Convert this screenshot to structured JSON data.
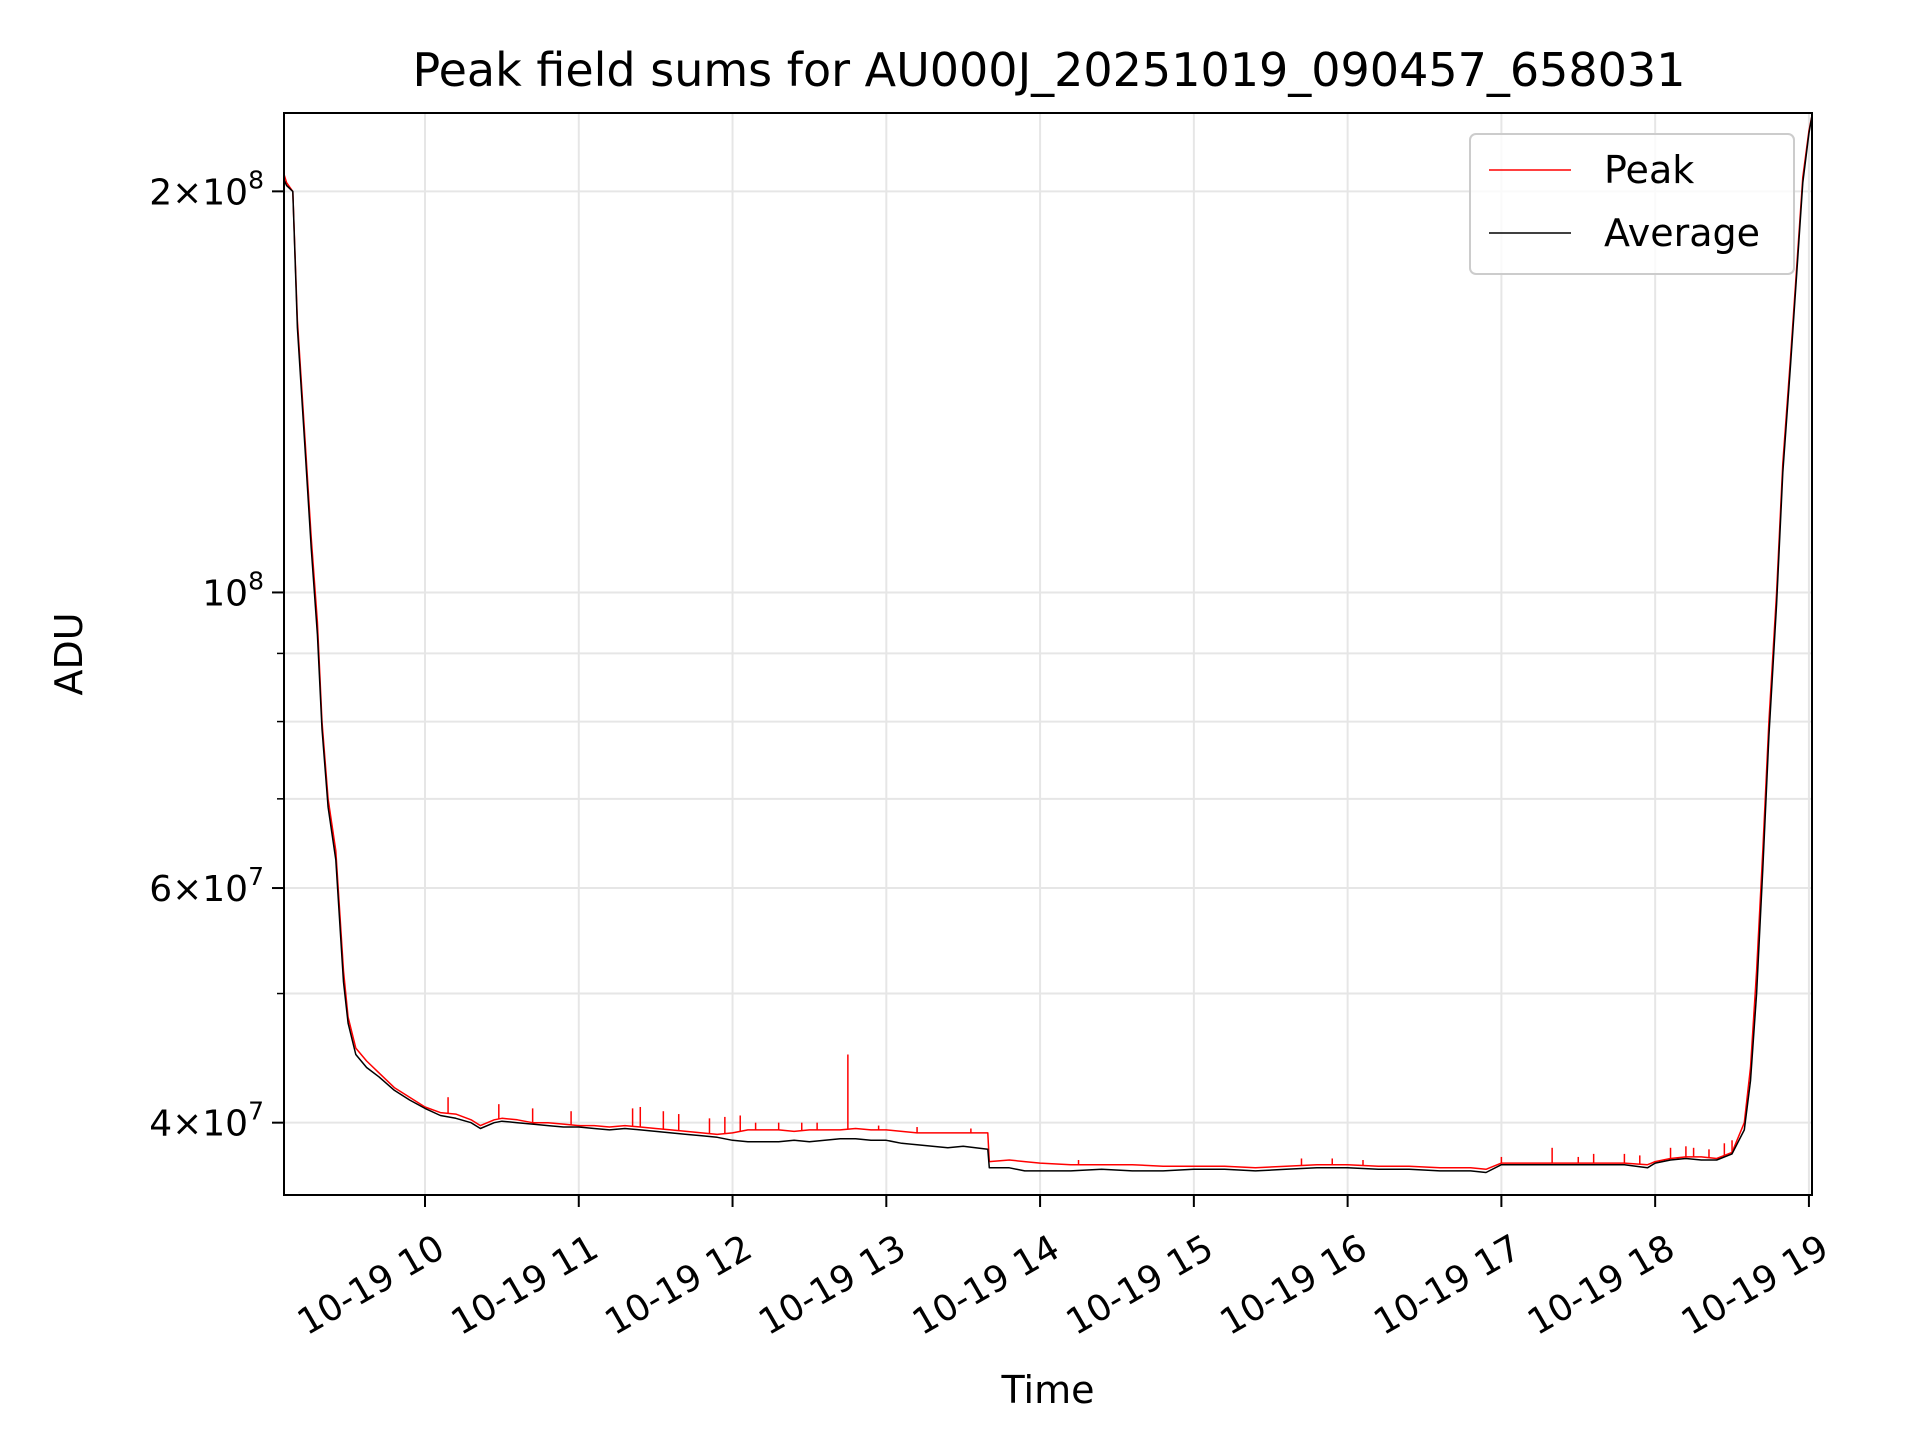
{
  "chart_data": {
    "type": "line",
    "title": "Peak field sums for AU000J_20251019_090457_658031",
    "xlabel": "Time",
    "ylabel": "ADU",
    "yscale": "log",
    "ylim": [
      35300000,
      229000000
    ],
    "xlim_hours": [
      9.083,
      19.02
    ],
    "grid": true,
    "legend_position": "top-right",
    "x_ticks": [
      {
        "hour": 10,
        "label": "10-19 10"
      },
      {
        "hour": 11,
        "label": "10-19 11"
      },
      {
        "hour": 12,
        "label": "10-19 12"
      },
      {
        "hour": 13,
        "label": "10-19 13"
      },
      {
        "hour": 14,
        "label": "10-19 14"
      },
      {
        "hour": 15,
        "label": "10-19 15"
      },
      {
        "hour": 16,
        "label": "10-19 16"
      },
      {
        "hour": 17,
        "label": "10-19 17"
      },
      {
        "hour": 18,
        "label": "10-19 18"
      },
      {
        "hour": 19,
        "label": "10-19 19"
      }
    ],
    "y_major_ticks": [
      {
        "value": 200000000,
        "mant": "2",
        "times": true,
        "exp": "8"
      },
      {
        "value": 100000000,
        "mant": "",
        "times": false,
        "exp": "8"
      },
      {
        "value": 60000000,
        "mant": "6",
        "times": true,
        "exp": "7"
      },
      {
        "value": 40000000,
        "mant": "4",
        "times": true,
        "exp": "7"
      }
    ],
    "y_minor_ticks": [
      90000000,
      80000000,
      70000000,
      50000000
    ],
    "series": [
      {
        "name": "Peak",
        "color": "#ff0000",
        "points": [
          [
            9.083,
            206000000
          ],
          [
            9.1,
            203000000
          ],
          [
            9.14,
            200000000
          ],
          [
            9.17,
            160000000
          ],
          [
            9.22,
            130000000
          ],
          [
            9.26,
            110000000
          ],
          [
            9.3,
            95000000
          ],
          [
            9.33,
            80000000
          ],
          [
            9.37,
            70000000
          ],
          [
            9.42,
            64000000
          ],
          [
            9.47,
            52000000
          ],
          [
            9.5,
            48000000
          ],
          [
            9.55,
            45500000
          ],
          [
            9.62,
            44500000
          ],
          [
            9.7,
            43600000
          ],
          [
            9.8,
            42500000
          ],
          [
            9.9,
            41800000
          ],
          [
            10.0,
            41100000
          ],
          [
            10.1,
            40700000
          ],
          [
            10.2,
            40600000
          ],
          [
            10.3,
            40200000
          ],
          [
            10.36,
            39800000
          ],
          [
            10.45,
            40200000
          ],
          [
            10.5,
            40300000
          ],
          [
            10.6,
            40200000
          ],
          [
            10.7,
            40000000
          ],
          [
            10.8,
            40000000
          ],
          [
            10.9,
            39900000
          ],
          [
            11.0,
            39800000
          ],
          [
            11.1,
            39800000
          ],
          [
            11.2,
            39700000
          ],
          [
            11.3,
            39800000
          ],
          [
            11.4,
            39700000
          ],
          [
            11.5,
            39600000
          ],
          [
            11.6,
            39500000
          ],
          [
            11.7,
            39400000
          ],
          [
            11.8,
            39300000
          ],
          [
            11.9,
            39200000
          ],
          [
            12.0,
            39300000
          ],
          [
            12.1,
            39500000
          ],
          [
            12.2,
            39500000
          ],
          [
            12.3,
            39500000
          ],
          [
            12.4,
            39400000
          ],
          [
            12.5,
            39500000
          ],
          [
            12.6,
            39500000
          ],
          [
            12.7,
            39500000
          ],
          [
            12.8,
            39600000
          ],
          [
            12.9,
            39500000
          ],
          [
            13.0,
            39500000
          ],
          [
            13.1,
            39400000
          ],
          [
            13.2,
            39300000
          ],
          [
            13.3,
            39300000
          ],
          [
            13.4,
            39300000
          ],
          [
            13.5,
            39300000
          ],
          [
            13.66,
            39300000
          ],
          [
            13.67,
            37400000
          ],
          [
            13.8,
            37500000
          ],
          [
            13.9,
            37400000
          ],
          [
            14.0,
            37300000
          ],
          [
            14.2,
            37200000
          ],
          [
            14.4,
            37200000
          ],
          [
            14.6,
            37200000
          ],
          [
            14.8,
            37100000
          ],
          [
            15.0,
            37100000
          ],
          [
            15.2,
            37100000
          ],
          [
            15.4,
            37000000
          ],
          [
            15.6,
            37100000
          ],
          [
            15.8,
            37200000
          ],
          [
            16.0,
            37200000
          ],
          [
            16.2,
            37100000
          ],
          [
            16.4,
            37100000
          ],
          [
            16.6,
            37000000
          ],
          [
            16.8,
            37000000
          ],
          [
            16.9,
            36900000
          ],
          [
            17.0,
            37300000
          ],
          [
            17.2,
            37300000
          ],
          [
            17.4,
            37300000
          ],
          [
            17.6,
            37300000
          ],
          [
            17.8,
            37300000
          ],
          [
            17.95,
            37200000
          ],
          [
            18.0,
            37400000
          ],
          [
            18.1,
            37600000
          ],
          [
            18.2,
            37700000
          ],
          [
            18.3,
            37700000
          ],
          [
            18.4,
            37600000
          ],
          [
            18.5,
            38000000
          ],
          [
            18.58,
            40000000
          ],
          [
            18.62,
            44000000
          ],
          [
            18.66,
            52000000
          ],
          [
            18.7,
            64000000
          ],
          [
            18.74,
            80000000
          ],
          [
            18.79,
            100000000
          ],
          [
            18.83,
            125000000
          ],
          [
            18.88,
            150000000
          ],
          [
            18.92,
            175000000
          ],
          [
            18.96,
            205000000
          ],
          [
            19.0,
            222000000
          ],
          [
            19.02,
            228000000
          ]
        ],
        "spikes": [
          [
            10.15,
            41800000
          ],
          [
            10.48,
            41300000
          ],
          [
            10.7,
            41000000
          ],
          [
            10.95,
            40800000
          ],
          [
            11.35,
            41000000
          ],
          [
            11.4,
            41100000
          ],
          [
            11.55,
            40800000
          ],
          [
            11.65,
            40600000
          ],
          [
            11.85,
            40300000
          ],
          [
            11.95,
            40400000
          ],
          [
            12.05,
            40500000
          ],
          [
            12.15,
            40000000
          ],
          [
            12.3,
            40000000
          ],
          [
            12.45,
            40000000
          ],
          [
            12.55,
            40000000
          ],
          [
            12.75,
            45000000
          ],
          [
            12.95,
            39800000
          ],
          [
            13.2,
            39700000
          ],
          [
            13.55,
            39600000
          ],
          [
            14.25,
            37500000
          ],
          [
            15.7,
            37600000
          ],
          [
            15.9,
            37600000
          ],
          [
            16.1,
            37500000
          ],
          [
            17.0,
            37700000
          ],
          [
            17.33,
            38300000
          ],
          [
            17.5,
            37700000
          ],
          [
            17.6,
            37900000
          ],
          [
            17.8,
            37900000
          ],
          [
            17.9,
            37800000
          ],
          [
            18.1,
            38300000
          ],
          [
            18.2,
            38400000
          ],
          [
            18.25,
            38300000
          ],
          [
            18.35,
            38200000
          ],
          [
            18.45,
            38600000
          ],
          [
            18.5,
            38800000
          ]
        ]
      },
      {
        "name": "Average",
        "color": "#000000",
        "points": [
          [
            9.083,
            204000000
          ],
          [
            9.1,
            202000000
          ],
          [
            9.14,
            200000000
          ],
          [
            9.17,
            158000000
          ],
          [
            9.22,
            128000000
          ],
          [
            9.26,
            108000000
          ],
          [
            9.3,
            93000000
          ],
          [
            9.33,
            79000000
          ],
          [
            9.37,
            69000000
          ],
          [
            9.42,
            63000000
          ],
          [
            9.47,
            51000000
          ],
          [
            9.5,
            47500000
          ],
          [
            9.55,
            45000000
          ],
          [
            9.62,
            44000000
          ],
          [
            9.7,
            43300000
          ],
          [
            9.8,
            42300000
          ],
          [
            9.9,
            41600000
          ],
          [
            10.0,
            41000000
          ],
          [
            10.1,
            40500000
          ],
          [
            10.2,
            40300000
          ],
          [
            10.3,
            40000000
          ],
          [
            10.36,
            39600000
          ],
          [
            10.45,
            40000000
          ],
          [
            10.5,
            40100000
          ],
          [
            10.6,
            40000000
          ],
          [
            10.7,
            39900000
          ],
          [
            10.8,
            39800000
          ],
          [
            10.9,
            39700000
          ],
          [
            11.0,
            39700000
          ],
          [
            11.1,
            39600000
          ],
          [
            11.2,
            39500000
          ],
          [
            11.3,
            39600000
          ],
          [
            11.4,
            39500000
          ],
          [
            11.5,
            39400000
          ],
          [
            11.6,
            39300000
          ],
          [
            11.7,
            39200000
          ],
          [
            11.8,
            39100000
          ],
          [
            11.9,
            39000000
          ],
          [
            12.0,
            38800000
          ],
          [
            12.1,
            38700000
          ],
          [
            12.2,
            38700000
          ],
          [
            12.3,
            38700000
          ],
          [
            12.4,
            38800000
          ],
          [
            12.5,
            38700000
          ],
          [
            12.6,
            38800000
          ],
          [
            12.7,
            38900000
          ],
          [
            12.8,
            38900000
          ],
          [
            12.9,
            38800000
          ],
          [
            13.0,
            38800000
          ],
          [
            13.1,
            38600000
          ],
          [
            13.2,
            38500000
          ],
          [
            13.3,
            38400000
          ],
          [
            13.4,
            38300000
          ],
          [
            13.5,
            38400000
          ],
          [
            13.66,
            38200000
          ],
          [
            13.67,
            37000000
          ],
          [
            13.8,
            37000000
          ],
          [
            13.9,
            36800000
          ],
          [
            14.0,
            36800000
          ],
          [
            14.2,
            36800000
          ],
          [
            14.4,
            36900000
          ],
          [
            14.6,
            36800000
          ],
          [
            14.8,
            36800000
          ],
          [
            15.0,
            36900000
          ],
          [
            15.2,
            36900000
          ],
          [
            15.4,
            36800000
          ],
          [
            15.6,
            36900000
          ],
          [
            15.8,
            37000000
          ],
          [
            16.0,
            37000000
          ],
          [
            16.2,
            36900000
          ],
          [
            16.4,
            36900000
          ],
          [
            16.6,
            36800000
          ],
          [
            16.8,
            36800000
          ],
          [
            16.9,
            36700000
          ],
          [
            17.0,
            37200000
          ],
          [
            17.2,
            37200000
          ],
          [
            17.4,
            37200000
          ],
          [
            17.6,
            37200000
          ],
          [
            17.8,
            37200000
          ],
          [
            17.95,
            37000000
          ],
          [
            18.0,
            37300000
          ],
          [
            18.1,
            37500000
          ],
          [
            18.2,
            37600000
          ],
          [
            18.3,
            37500000
          ],
          [
            18.4,
            37500000
          ],
          [
            18.5,
            37900000
          ],
          [
            18.58,
            39500000
          ],
          [
            18.62,
            43000000
          ],
          [
            18.66,
            50000000
          ],
          [
            18.7,
            62000000
          ],
          [
            18.74,
            78000000
          ],
          [
            18.79,
            98000000
          ],
          [
            18.83,
            123000000
          ],
          [
            18.88,
            148000000
          ],
          [
            18.92,
            173000000
          ],
          [
            18.96,
            203000000
          ],
          [
            19.0,
            221000000
          ],
          [
            19.02,
            228000000
          ]
        ]
      }
    ]
  }
}
